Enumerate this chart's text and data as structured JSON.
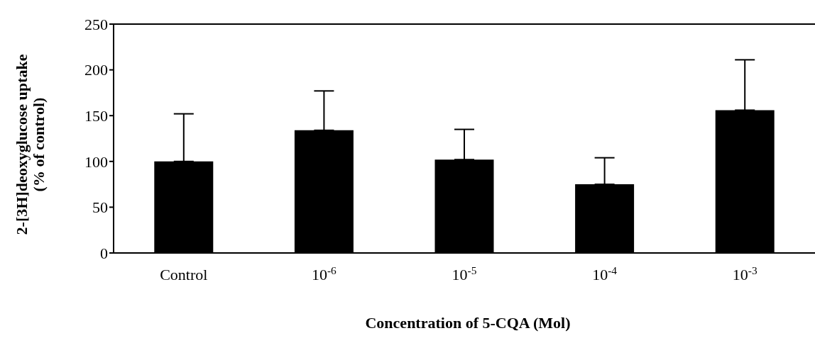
{
  "chart_data": {
    "type": "bar",
    "xlabel": "Concentration of 5-CQA (Mol)",
    "ylabel": "2-[3H]deoxyglucose uptake\n(% of control)",
    "categories": [
      "Control",
      "10$^{-6}$",
      "10$^{-5}$",
      "10$^{-4}$",
      "10$^{-3}$"
    ],
    "series": [
      {
        "color": "#000000",
        "values": [
          100,
          134,
          102,
          75,
          156
        ],
        "errors": [
          [
            100,
            152
          ],
          [
            134,
            177
          ],
          [
            102,
            135
          ],
          [
            75,
            104
          ],
          [
            156,
            211
          ]
        ]
      }
    ],
    "ylim": [
      0,
      250
    ],
    "yticks": [
      0,
      50,
      100,
      150,
      200,
      250
    ],
    "grid": false
  }
}
